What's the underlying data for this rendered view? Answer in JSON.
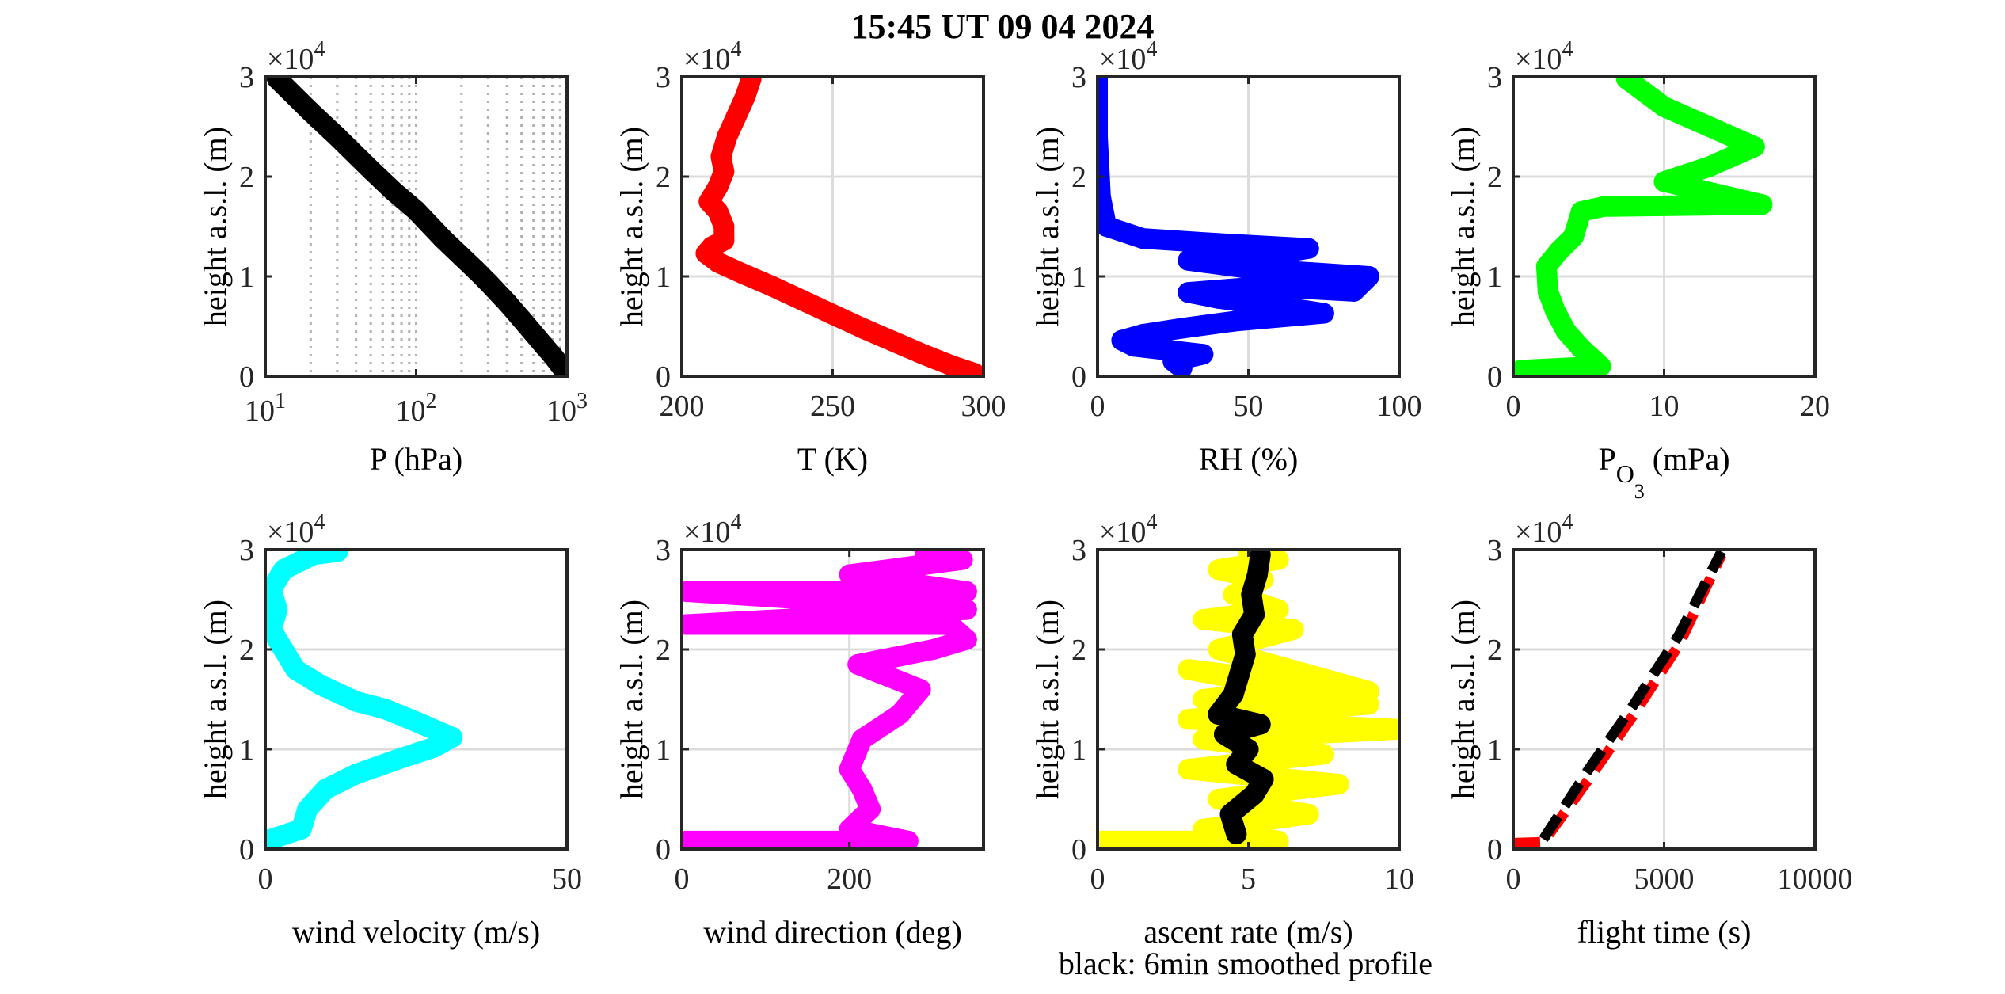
{
  "figure": {
    "title": "15:45 UT  09 04 2024",
    "footnote": "black: 6min smoothed profile",
    "ylabel": "height a.s.l. (m)",
    "y_exponent_base": "×10",
    "y_exponent_power": "4"
  },
  "chart_data": [
    {
      "type": "scatter",
      "id": "pressure",
      "xlabel": "P (hPa)",
      "xlabel_sub": "",
      "xlabel_tail": "",
      "ylabel": "height a.s.l. (m)",
      "xscale": "log",
      "xlim": [
        10,
        1000
      ],
      "ylim": [
        0,
        30000
      ],
      "xticks": [
        10,
        100,
        1000
      ],
      "xtick_labels": [
        {
          "base": "10",
          "exp": "1"
        },
        {
          "base": "10",
          "exp": "2"
        },
        {
          "base": "10",
          "exp": "3"
        }
      ],
      "yticks": [
        0,
        10000,
        20000,
        30000
      ],
      "ytick_labels": [
        "0",
        "1",
        "2",
        "3"
      ],
      "grid": "log-dotted",
      "series": [
        {
          "color": "#000000",
          "x": [
            1000,
            900,
            800,
            700,
            600,
            500,
            400,
            300,
            250,
            200,
            150,
            100,
            70,
            50,
            30,
            20,
            12
          ],
          "y": [
            200,
            1100,
            2100,
            3100,
            4300,
            5700,
            7400,
            9400,
            10600,
            12000,
            13800,
            16600,
            18600,
            20700,
            24000,
            26500,
            29800
          ]
        }
      ]
    },
    {
      "type": "scatter",
      "id": "temperature",
      "xlabel": "T (K)",
      "xlabel_sub": "",
      "xlabel_tail": "",
      "ylabel": "height a.s.l. (m)",
      "xlim": [
        200,
        300
      ],
      "ylim": [
        0,
        30000
      ],
      "xticks": [
        200,
        250,
        300
      ],
      "xtick_labels": [
        "200",
        "250",
        "300"
      ],
      "yticks": [
        0,
        10000,
        20000,
        30000
      ],
      "ytick_labels": [
        "0",
        "1",
        "2",
        "3"
      ],
      "grid": "on",
      "series": [
        {
          "color": "#ff0000",
          "x": [
            297,
            290,
            280,
            270,
            260,
            250,
            240,
            230,
            220,
            212,
            208,
            210,
            214,
            214,
            212,
            209,
            212,
            214,
            213,
            215,
            218,
            221,
            223
          ],
          "y": [
            300,
            1000,
            2200,
            3500,
            4800,
            6200,
            7600,
            9000,
            10300,
            11400,
            12300,
            13000,
            13600,
            15000,
            16500,
            17500,
            19000,
            20500,
            22000,
            24000,
            26000,
            28000,
            29800
          ]
        }
      ]
    },
    {
      "type": "scatter",
      "id": "humidity",
      "xlabel": "RH (%)",
      "xlabel_sub": "",
      "xlabel_tail": "",
      "ylabel": "height a.s.l. (m)",
      "xlim": [
        0,
        100
      ],
      "ylim": [
        0,
        30000
      ],
      "xticks": [
        0,
        50,
        100
      ],
      "xtick_labels": [
        "0",
        "50",
        "100"
      ],
      "yticks": [
        0,
        10000,
        20000,
        30000
      ],
      "ytick_labels": [
        "0",
        "1",
        "2",
        "3"
      ],
      "grid": "on",
      "series": [
        {
          "color": "#0000ff",
          "x": [
            28,
            25,
            35,
            12,
            8,
            15,
            28,
            45,
            75,
            60,
            40,
            30,
            55,
            85,
            90,
            50,
            30,
            60,
            70,
            40,
            15,
            3,
            1,
            0,
            0
          ],
          "y": [
            800,
            1500,
            2200,
            3000,
            3600,
            4200,
            4800,
            5500,
            6300,
            7000,
            7800,
            8400,
            9000,
            8500,
            10000,
            10800,
            11600,
            12300,
            12800,
            13300,
            13800,
            15000,
            18000,
            24000,
            29800
          ]
        }
      ]
    },
    {
      "type": "scatter",
      "id": "ozone",
      "xlabel": "P",
      "xlabel_sub": "O",
      "xlabel_sub2": "3",
      "xlabel_tail": " (mPa)",
      "ylabel": "height a.s.l. (m)",
      "xlim": [
        0,
        20
      ],
      "ylim": [
        0,
        30000
      ],
      "xticks": [
        0,
        10,
        20
      ],
      "xtick_labels": [
        "0",
        "10",
        "20"
      ],
      "yticks": [
        0,
        10000,
        20000,
        30000
      ],
      "ytick_labels": [
        "0",
        "1",
        "2",
        "3"
      ],
      "grid": "on",
      "series": [
        {
          "color": "#00ff00",
          "x": [
            0.5,
            5.8,
            4.5,
            3.5,
            2.8,
            2.3,
            2.2,
            3.0,
            4.0,
            4.5,
            6.0,
            16.5,
            10,
            13,
            16,
            13,
            10,
            7.5
          ],
          "y": [
            600,
            1000,
            2800,
            4500,
            6500,
            8500,
            11000,
            12500,
            14000,
            16500,
            17000,
            17200,
            19500,
            21000,
            23000,
            25000,
            27000,
            29800
          ]
        }
      ]
    },
    {
      "type": "scatter",
      "id": "wind-velocity",
      "xlabel": "wind velocity (m/s)",
      "xlabel_sub": "",
      "xlabel_tail": "",
      "ylabel": "height a.s.l. (m)",
      "xlim": [
        0,
        50
      ],
      "ylim": [
        0,
        30000
      ],
      "xticks": [
        0,
        50
      ],
      "xtick_labels": [
        "0",
        "50"
      ],
      "yticks": [
        0,
        10000,
        20000,
        30000
      ],
      "ytick_labels": [
        "0",
        "1",
        "2",
        "3"
      ],
      "grid": "on",
      "series": [
        {
          "color": "#00ffff",
          "x": [
            0,
            6,
            7,
            10,
            15,
            22,
            28,
            31,
            26,
            20,
            15,
            9,
            5,
            3,
            1,
            2,
            1,
            3,
            8,
            12
          ],
          "y": [
            800,
            2000,
            4000,
            6000,
            7500,
            9000,
            10200,
            11200,
            12500,
            14000,
            14800,
            16500,
            18000,
            20000,
            22000,
            24000,
            26000,
            28000,
            29500,
            29800
          ]
        }
      ]
    },
    {
      "type": "scatter",
      "id": "wind-direction",
      "xlabel": "wind direction (deg)",
      "xlabel_sub": "",
      "xlabel_tail": "",
      "ylabel": "height a.s.l. (m)",
      "xlim": [
        0,
        360
      ],
      "ylim": [
        0,
        30000
      ],
      "xticks": [
        0,
        200
      ],
      "xtick_labels": [
        "0",
        "200"
      ],
      "yticks": [
        0,
        10000,
        20000,
        30000
      ],
      "ytick_labels": [
        "0",
        "1",
        "2",
        "3"
      ],
      "grid": "on",
      "series": [
        {
          "color": "#ff00ff",
          "x": [
            5,
            40,
            270,
            200,
            225,
            215,
            200,
            215,
            260,
            285,
            210,
            300,
            340,
            320,
            5,
            340,
            5,
            340,
            200,
            290,
            335,
            300,
            290
          ],
          "y": [
            800,
            800,
            800,
            2000,
            4000,
            6000,
            8000,
            11000,
            13500,
            16000,
            18500,
            20000,
            21000,
            22500,
            22500,
            24000,
            25800,
            25800,
            27500,
            28500,
            29000,
            29500,
            29800
          ]
        }
      ]
    },
    {
      "type": "scatter",
      "id": "ascent-rate",
      "xlabel": "ascent rate (m/s)",
      "xlabel_sub": "",
      "xlabel_tail": "",
      "ylabel": "height a.s.l. (m)",
      "xlim": [
        0,
        10
      ],
      "ylim": [
        0,
        30000
      ],
      "xticks": [
        0,
        5,
        10
      ],
      "xtick_labels": [
        "0",
        "5",
        "10"
      ],
      "yticks": [
        0,
        10000,
        20000,
        30000
      ],
      "ytick_labels": [
        "0",
        "1",
        "2",
        "3"
      ],
      "grid": "on",
      "series": [
        {
          "name": "",
          "color": "#ffff00",
          "x": [
            0,
            6,
            3.5,
            7,
            4,
            8,
            3,
            7.5,
            3.5,
            10,
            3,
            9,
            3.5,
            6.5,
            3,
            9,
            4,
            6.5,
            3.5,
            6,
            4.5,
            5.5,
            4,
            6,
            5
          ],
          "y": [
            800,
            800,
            2000,
            3500,
            5000,
            6500,
            8000,
            9500,
            11000,
            12000,
            13000,
            14500,
            15000,
            16000,
            18000,
            15800,
            20000,
            22000,
            23000,
            24000,
            25500,
            27000,
            28000,
            29000,
            29800
          ]
        },
        {
          "name": "",
          "color": "#000000",
          "x": [
            4.6,
            4.4,
            5.2,
            5.5,
            4.6,
            5.0,
            4.2,
            5.4,
            4.0,
            4.5,
            4.7,
            4.9,
            4.8,
            5.2,
            5.1,
            5.3,
            5.4
          ],
          "y": [
            1500,
            3500,
            5500,
            7000,
            8500,
            10000,
            11500,
            12500,
            13500,
            15500,
            17500,
            19500,
            21500,
            23500,
            25500,
            27500,
            29500
          ]
        }
      ]
    },
    {
      "type": "line",
      "id": "flight-time",
      "xlabel": "flight time (s)",
      "xlabel_sub": "",
      "xlabel_tail": "",
      "ylabel": "height a.s.l. (m)",
      "xlim": [
        0,
        10000
      ],
      "ylim": [
        0,
        30000
      ],
      "xticks": [
        0,
        5000,
        10000
      ],
      "xtick_labels": [
        "0",
        "5000",
        "10000"
      ],
      "yticks": [
        0,
        10000,
        20000,
        30000
      ],
      "ytick_labels": [
        "0",
        "1",
        "2",
        "3"
      ],
      "grid": "on",
      "series": [
        {
          "name": "",
          "color": "#ff0000",
          "style": "dashed",
          "x": [
            0,
            1000,
            2500,
            4000,
            5500,
            6900
          ],
          "y": [
            600,
            700,
            7000,
            13500,
            20500,
            29500
          ]
        },
        {
          "name": "",
          "color": "#000000",
          "style": "dashed",
          "x": [
            1000,
            2500,
            4000,
            5500,
            6900
          ],
          "y": [
            1000,
            8000,
            14500,
            21500,
            29800
          ]
        }
      ]
    }
  ]
}
